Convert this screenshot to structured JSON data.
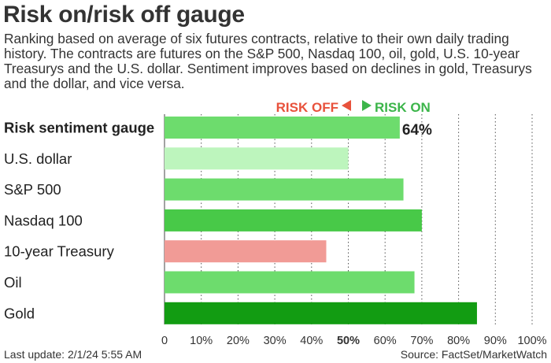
{
  "header": {
    "title": "Risk on/risk off gauge",
    "subtitle": "Ranking based on average of six futures contracts, relative to their own daily trading history. The contracts are futures on the S&P 500, Nasdaq 100, oil, gold, U.S. 10-year Treasurys and the U.S. dollar. Sentiment improves based on declines in gold, Treasurys and the dollar, and vice versa."
  },
  "legend": {
    "risk_off": "RISK OFF",
    "risk_on": "RISK ON",
    "risk_off_color": "#e8523c",
    "risk_on_color": "#3cb54a"
  },
  "footer": {
    "last_update": "Last update: 2/1/24 5:55 AM",
    "source": "Source: FactSet/MarketWatch"
  },
  "chart_data": {
    "type": "bar",
    "orientation": "horizontal",
    "categories": [
      "Risk sentiment gauge",
      "U.S. dollar",
      "S&P 500",
      "Nasdaq 100",
      "10-year Treasury",
      "Oil",
      "Gold"
    ],
    "values": [
      64,
      50,
      65,
      70,
      44,
      68,
      85
    ],
    "colors": [
      "#6ddc6d",
      "#bdf5bd",
      "#6ddc6d",
      "#48c948",
      "#f19b96",
      "#6ddc6d",
      "#129c12"
    ],
    "data_labels": [
      "64%",
      "",
      "",
      "",
      "",
      "",
      ""
    ],
    "bold_categories": [
      "Risk sentiment gauge"
    ],
    "xlim": [
      0,
      100
    ],
    "xticks": [
      "0",
      "10%",
      "20%",
      "30%",
      "40%",
      "50%",
      "60%",
      "70%",
      "80%",
      "90%",
      "100%"
    ],
    "highlight_tick": "50%",
    "grid": "vertical dotted"
  }
}
